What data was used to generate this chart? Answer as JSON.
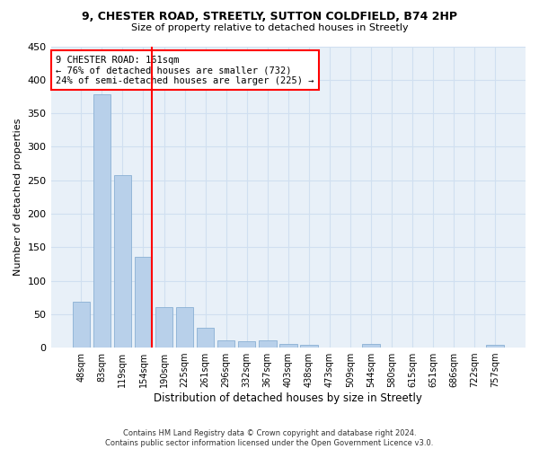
{
  "title1": "9, CHESTER ROAD, STREETLY, SUTTON COLDFIELD, B74 2HP",
  "title2": "Size of property relative to detached houses in Streetly",
  "xlabel": "Distribution of detached houses by size in Streetly",
  "ylabel": "Number of detached properties",
  "categories": [
    "48sqm",
    "83sqm",
    "119sqm",
    "154sqm",
    "190sqm",
    "225sqm",
    "261sqm",
    "296sqm",
    "332sqm",
    "367sqm",
    "403sqm",
    "438sqm",
    "473sqm",
    "509sqm",
    "544sqm",
    "580sqm",
    "615sqm",
    "651sqm",
    "686sqm",
    "722sqm",
    "757sqm"
  ],
  "values": [
    68,
    378,
    258,
    136,
    60,
    60,
    30,
    11,
    10,
    11,
    5,
    4,
    0,
    0,
    5,
    0,
    0,
    0,
    0,
    0,
    4
  ],
  "bar_color": "#b8d0ea",
  "bar_edge_color": "#8ab0d4",
  "grid_color": "#d0dff0",
  "bg_color": "#e8f0f8",
  "property_line_x": 3.42,
  "annotation_text": "9 CHESTER ROAD: 161sqm\n← 76% of detached houses are smaller (732)\n24% of semi-detached houses are larger (225) →",
  "annotation_box_color": "white",
  "annotation_box_edge": "red",
  "vline_color": "red",
  "footnote": "Contains HM Land Registry data © Crown copyright and database right 2024.\nContains public sector information licensed under the Open Government Licence v3.0.",
  "ylim": [
    0,
    450
  ],
  "yticks": [
    0,
    50,
    100,
    150,
    200,
    250,
    300,
    350,
    400,
    450
  ]
}
